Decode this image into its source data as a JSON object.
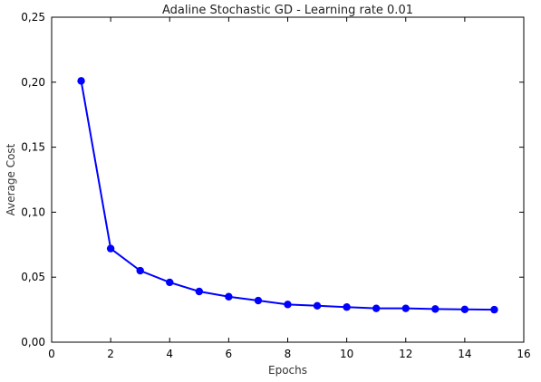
{
  "chart_data": {
    "type": "line",
    "title": "Adaline Stochastic GD - Learning rate 0.01",
    "xlabel": "Epochs",
    "ylabel": "Average Cost",
    "xlim": [
      0,
      16
    ],
    "ylim": [
      0,
      0.25
    ],
    "x_ticks": [
      "0",
      "2",
      "4",
      "6",
      "8",
      "10",
      "12",
      "14",
      "16"
    ],
    "y_ticks": [
      "0,00",
      "0,05",
      "0,10",
      "0,15",
      "0,20",
      "0,25"
    ],
    "series": [
      {
        "x": [
          1,
          2,
          3,
          4,
          5,
          6,
          7,
          8,
          9,
          10,
          11,
          12,
          13,
          14,
          15
        ],
        "values": [
          0.201,
          0.072,
          0.055,
          0.046,
          0.039,
          0.035,
          0.032,
          0.029,
          0.028,
          0.027,
          0.026,
          0.026,
          0.0255,
          0.0252,
          0.025
        ],
        "color": "#0000ff",
        "marker": "circle"
      }
    ],
    "grid": false,
    "legend": "none"
  }
}
